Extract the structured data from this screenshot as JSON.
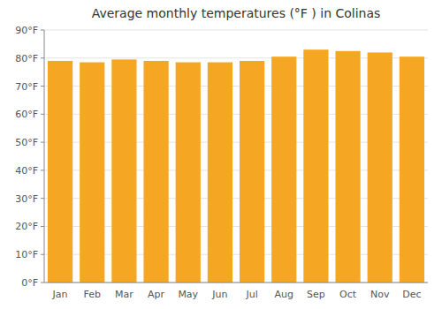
{
  "chart_data": {
    "type": "bar",
    "title": "Average monthly temperatures (°F ) in Colinas",
    "categories": [
      "Jan",
      "Feb",
      "Mar",
      "Apr",
      "May",
      "Jun",
      "Jul",
      "Aug",
      "Sep",
      "Oct",
      "Nov",
      "Dec"
    ],
    "values": [
      79,
      78.5,
      79.5,
      79,
      78.5,
      78.5,
      79,
      80.5,
      83,
      82.5,
      82,
      80.5
    ],
    "color": "#F5A623",
    "ylim": [
      0,
      90
    ],
    "yticks": [
      {
        "value": 0,
        "label": "0°F"
      },
      {
        "value": 10,
        "label": "10°F"
      },
      {
        "value": 20,
        "label": "20°F"
      },
      {
        "value": 30,
        "label": "30°F"
      },
      {
        "value": 40,
        "label": "40°F"
      },
      {
        "value": 50,
        "label": "50°F"
      },
      {
        "value": 60,
        "label": "60°F"
      },
      {
        "value": 70,
        "label": "70°F"
      },
      {
        "value": 80,
        "label": "80°F"
      },
      {
        "value": 90,
        "label": "90°F"
      }
    ],
    "grid": true
  }
}
